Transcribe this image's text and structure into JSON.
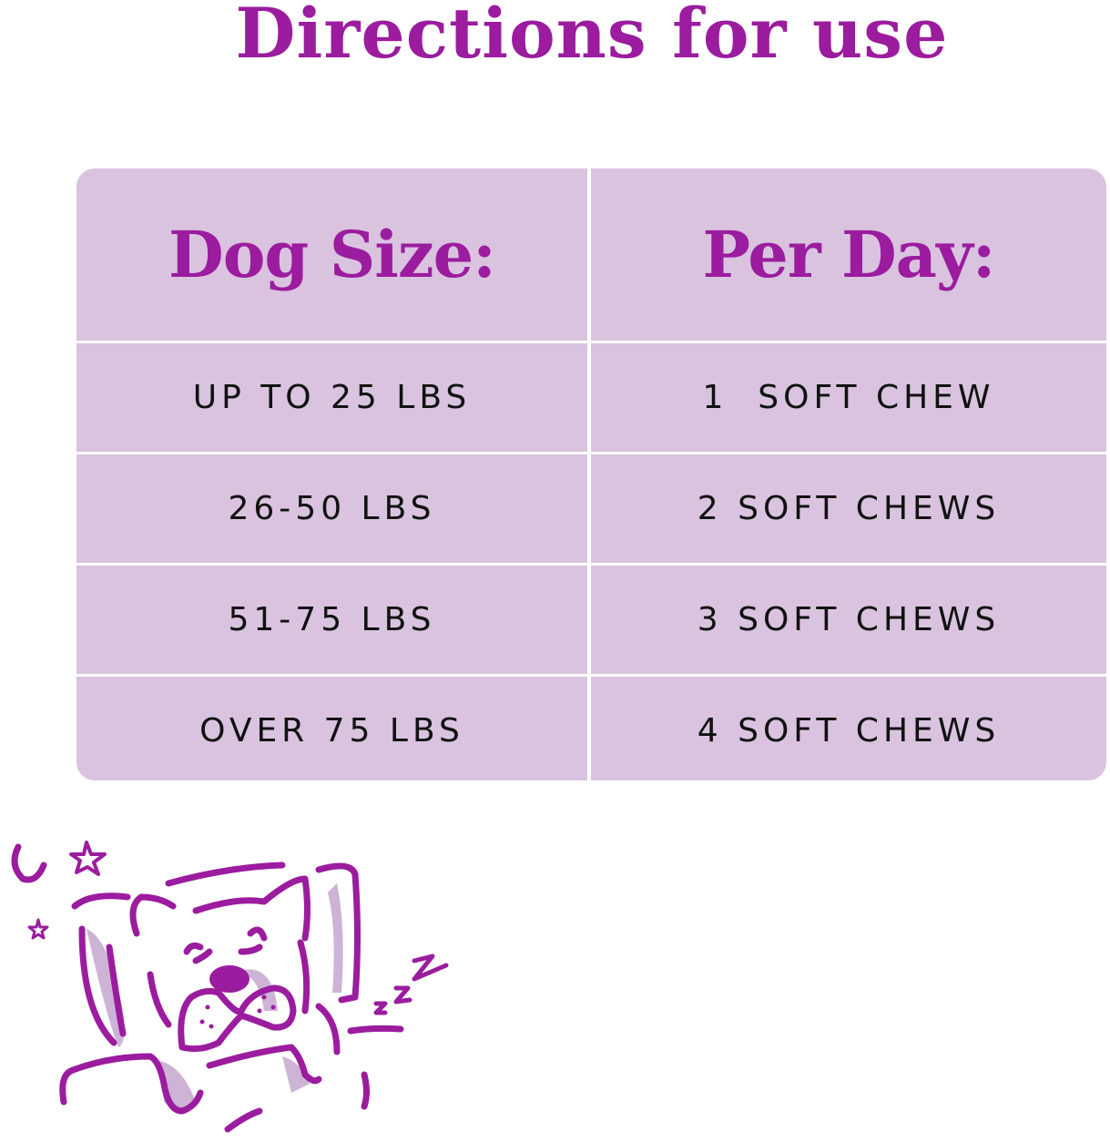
{
  "title": "Directions for use",
  "colors": {
    "accent": "#9b1c9e",
    "table_bg": "#d9c3df",
    "shadow": "#cdb3d6"
  },
  "table": {
    "headers": [
      "Dog Size:",
      "Per Day:"
    ],
    "rows": [
      [
        "UP TO 25 LBS",
        "1  SOFT CHEW"
      ],
      [
        "26-50 LBS",
        "2 SOFT CHEWS"
      ],
      [
        "51-75 LBS",
        "3 SOFT CHEWS"
      ],
      [
        "OVER 75 LBS",
        "4 SOFT CHEWS"
      ]
    ]
  },
  "illustration": "sleeping-dog-on-pillow"
}
